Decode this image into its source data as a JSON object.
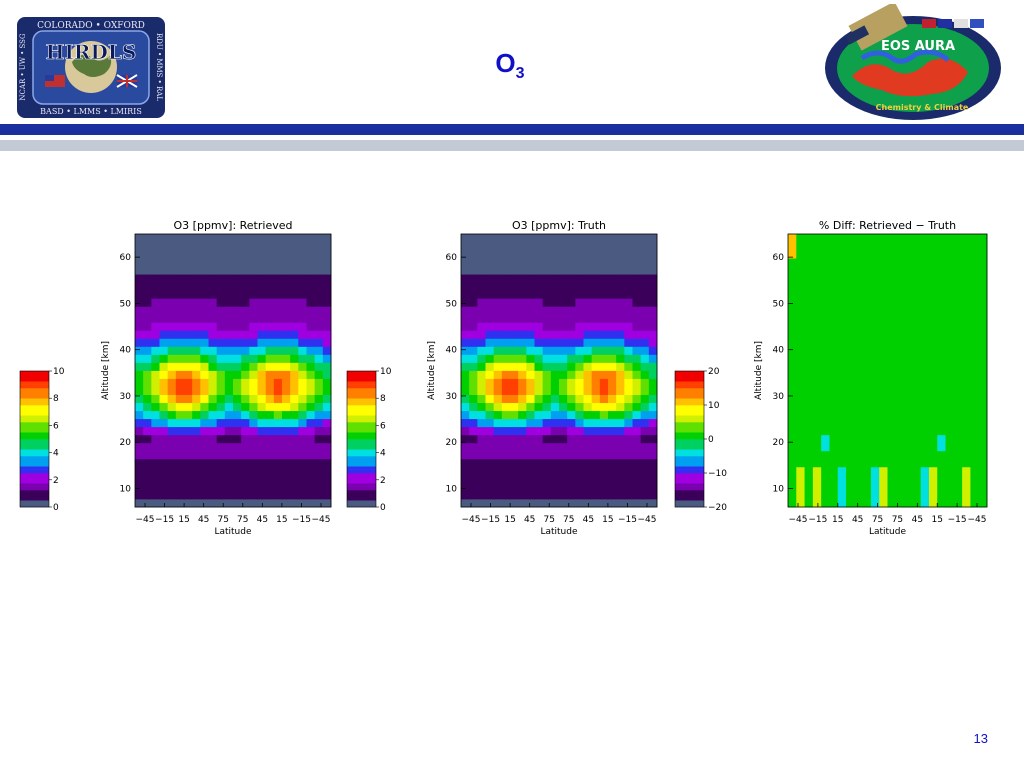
{
  "header": {
    "title_main": "O",
    "title_sub": "3",
    "page_number": "13"
  },
  "logos": {
    "hirdls": {
      "name": "HIRDLS",
      "top_text": "COLORADO • OXFORD",
      "bottom_text": "BASD • LMMS • LMIRIS",
      "left_text": "NCAR • UW • SSG",
      "right_text": "RDU • MMS • RAL"
    },
    "aura": {
      "name": "EOS AURA",
      "tagline": "Chemistry & Climate"
    }
  },
  "colors": {
    "title": "#1010c8",
    "bar_dark": "#1c2f9e",
    "bar_light": "#c3cad6",
    "colormap": [
      "#4a5a80",
      "#3a005a",
      "#7a00b0",
      "#a000e0",
      "#3030f0",
      "#00a0f0",
      "#00e0e0",
      "#00d060",
      "#00d000",
      "#60e000",
      "#d0f000",
      "#ffff00",
      "#ffc000",
      "#ff8000",
      "#ff4000",
      "#f00000"
    ]
  },
  "chart_data": [
    {
      "type": "heatmap",
      "title": "O3 [ppmv]: Retrieved",
      "xlabel": "Latitude",
      "ylabel": "Altitude [km]",
      "x_tick_labels": [
        "−45",
        "−15",
        "15",
        "45",
        "75",
        "75",
        "45",
        "15",
        "−15",
        "−45"
      ],
      "y_ticks": [
        10,
        20,
        30,
        40,
        50,
        60
      ],
      "ylim": [
        6,
        65
      ],
      "colorbar": {
        "ticks": [
          0,
          2,
          4,
          6,
          8,
          10
        ],
        "range": [
          0,
          10
        ]
      }
    },
    {
      "type": "heatmap",
      "title": "O3 [ppmv]: Truth",
      "xlabel": "Latitude",
      "ylabel": "Altitude [km]",
      "x_tick_labels": [
        "−45",
        "−15",
        "15",
        "45",
        "75",
        "75",
        "45",
        "15",
        "−15",
        "−45"
      ],
      "y_ticks": [
        10,
        20,
        30,
        40,
        50,
        60
      ],
      "ylim": [
        6,
        65
      ],
      "colorbar": {
        "ticks": [
          0,
          2,
          4,
          6,
          8,
          10
        ],
        "range": [
          0,
          10
        ]
      }
    },
    {
      "type": "heatmap",
      "title": "% Diff: Retrieved − Truth",
      "xlabel": "Latitude",
      "ylabel": "Altitude [km]",
      "x_tick_labels": [
        "−45",
        "−15",
        "15",
        "45",
        "75",
        "75",
        "45",
        "15",
        "−15",
        "−45"
      ],
      "y_ticks": [
        10,
        20,
        30,
        40,
        50,
        60
      ],
      "ylim": [
        6,
        65
      ],
      "colorbar": {
        "ticks": [
          -20,
          -10,
          0,
          10,
          20
        ],
        "tick_labels": [
          "−20",
          "−10",
          "0",
          "10",
          "20"
        ],
        "range": [
          -20,
          20
        ]
      }
    }
  ]
}
